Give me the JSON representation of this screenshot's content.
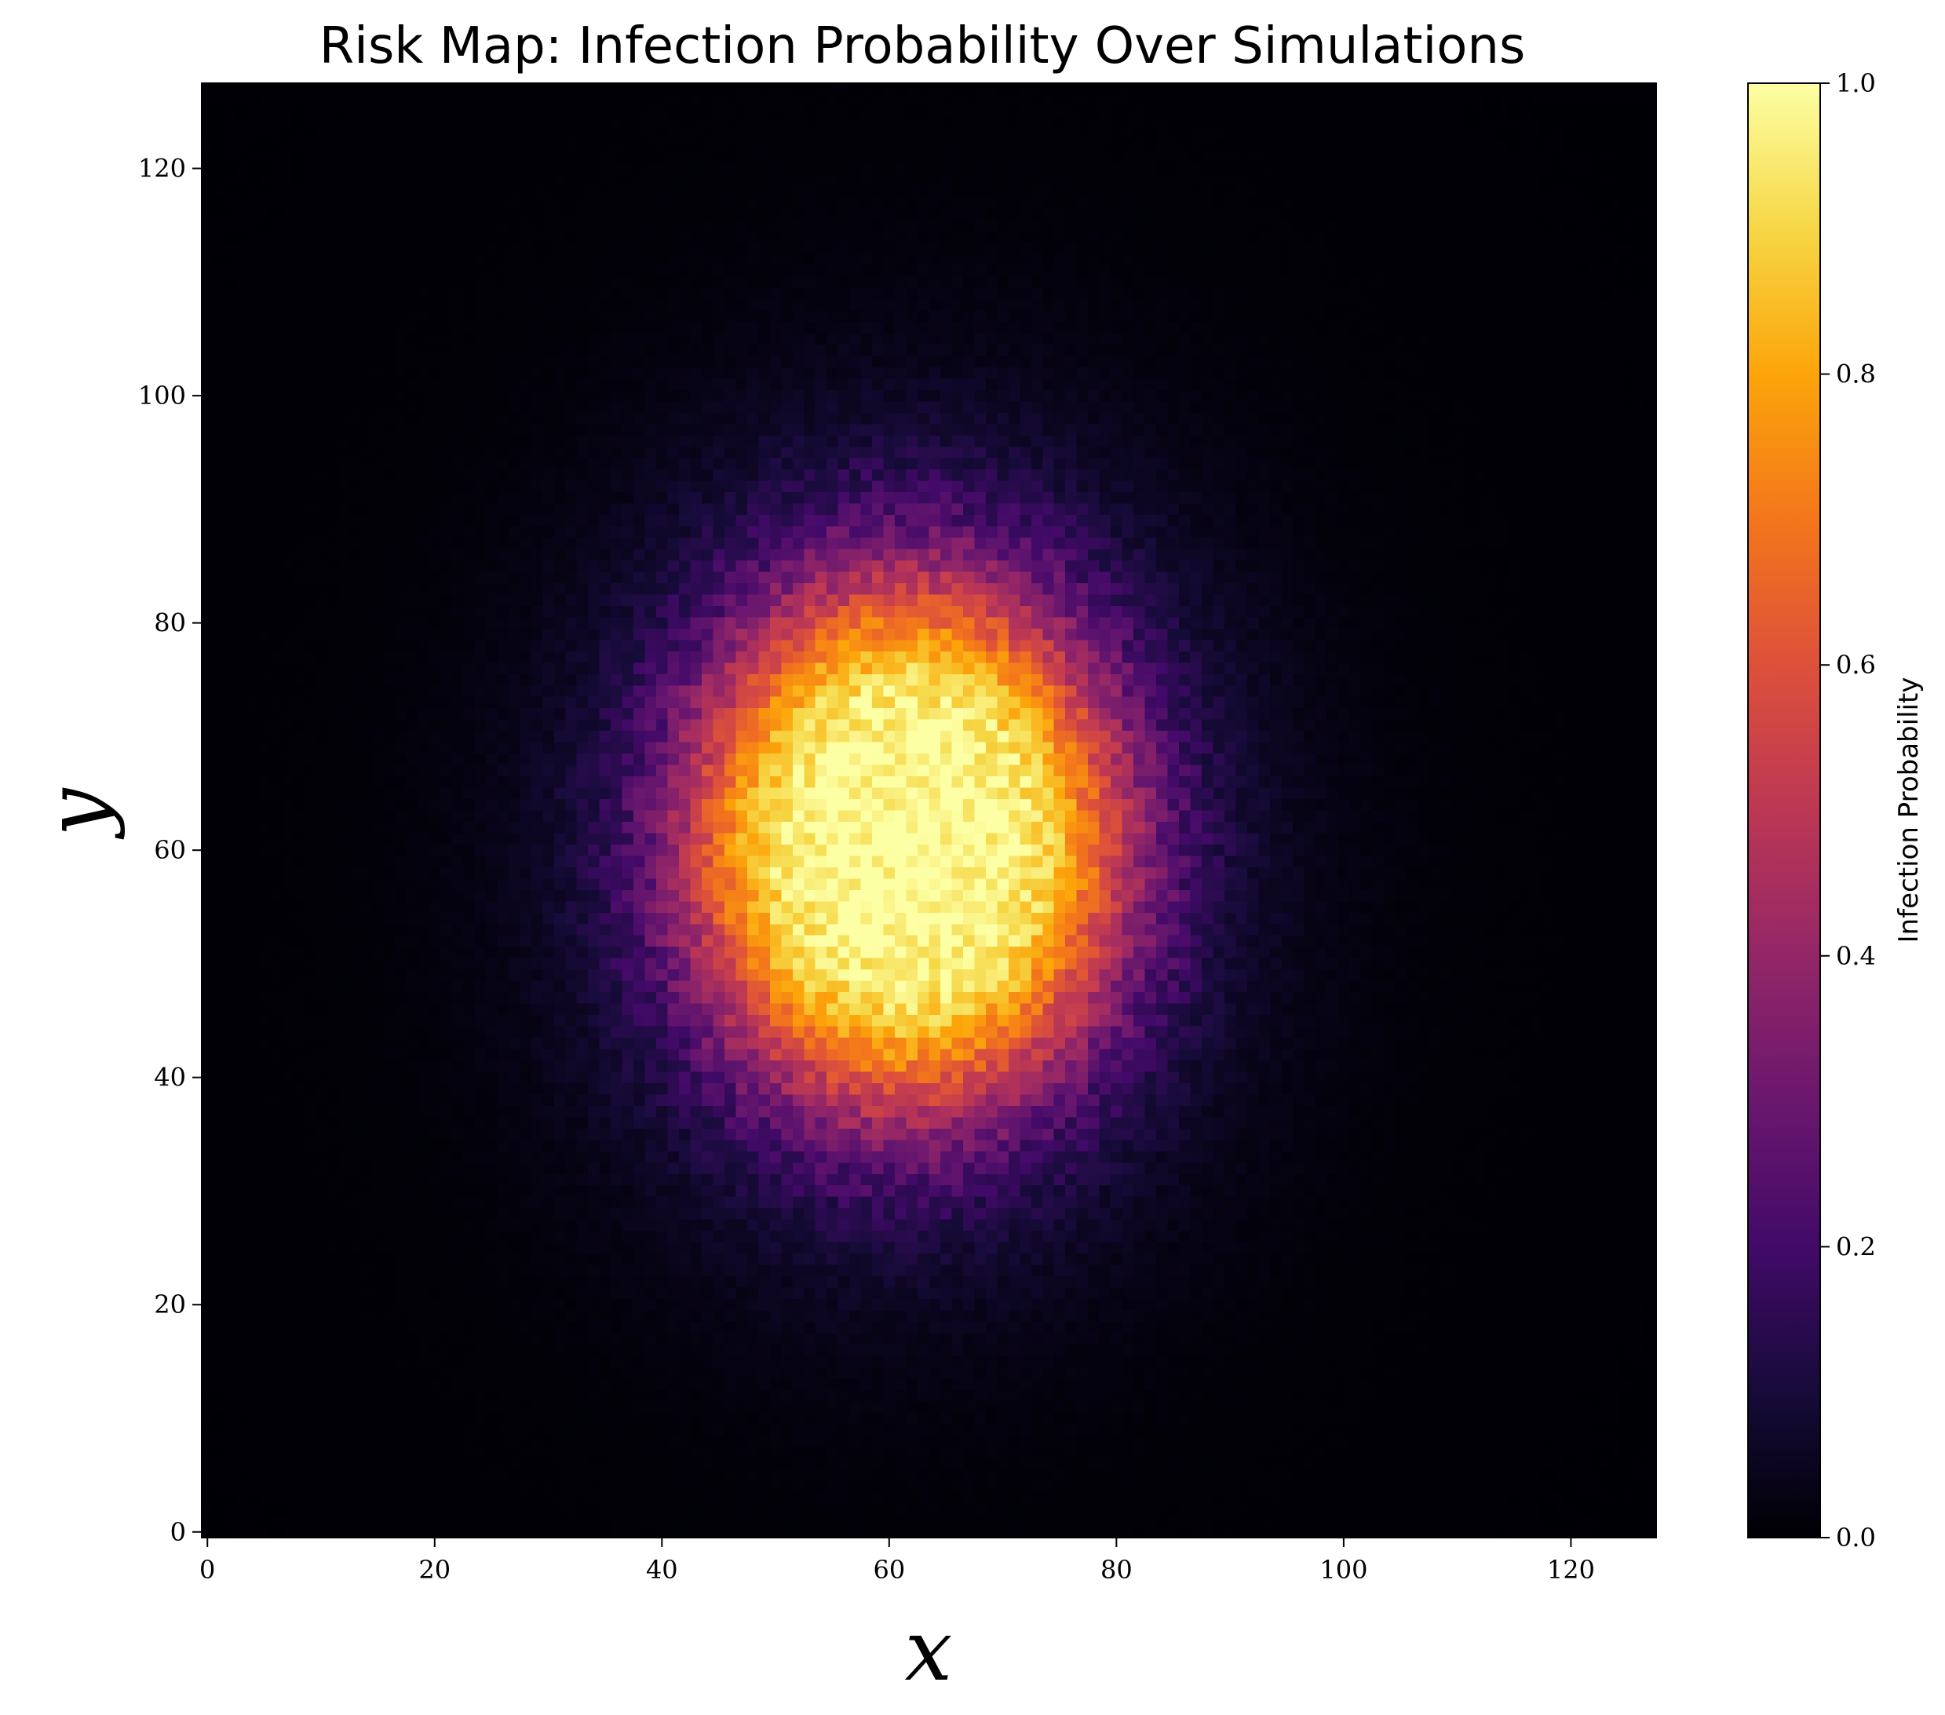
{
  "chart_data": {
    "type": "heatmap",
    "title": "Risk Map: Infection Probability Over Simulations",
    "xlabel": "x",
    "ylabel": "y",
    "colorbar_label": "Infection Probability",
    "colormap": "inferno",
    "grid_size": [
      128,
      128
    ],
    "xlim": [
      0,
      128
    ],
    "ylim": [
      0,
      128
    ],
    "clim": [
      0.0,
      1.0
    ],
    "x_ticks": [
      0,
      20,
      40,
      60,
      80,
      100,
      120
    ],
    "y_ticks": [
      0,
      20,
      40,
      60,
      80,
      100,
      120
    ],
    "x_tick_labels": [
      "0",
      "20",
      "40",
      "60",
      "80",
      "100",
      "120"
    ],
    "y_tick_labels": [
      "0",
      "20",
      "40",
      "60",
      "80",
      "100",
      "120"
    ],
    "colorbar_ticks": [
      0.0,
      0.2,
      0.4,
      0.6,
      0.8,
      1.0
    ],
    "colorbar_tick_labels": [
      "0.0",
      "0.2",
      "0.4",
      "0.6",
      "0.8",
      "1.0"
    ],
    "hotspot": {
      "center_x": 62,
      "center_y": 61,
      "core_radius_x": 18,
      "core_radius_y": 22,
      "peak_value": 1.0
    },
    "grid": false
  }
}
